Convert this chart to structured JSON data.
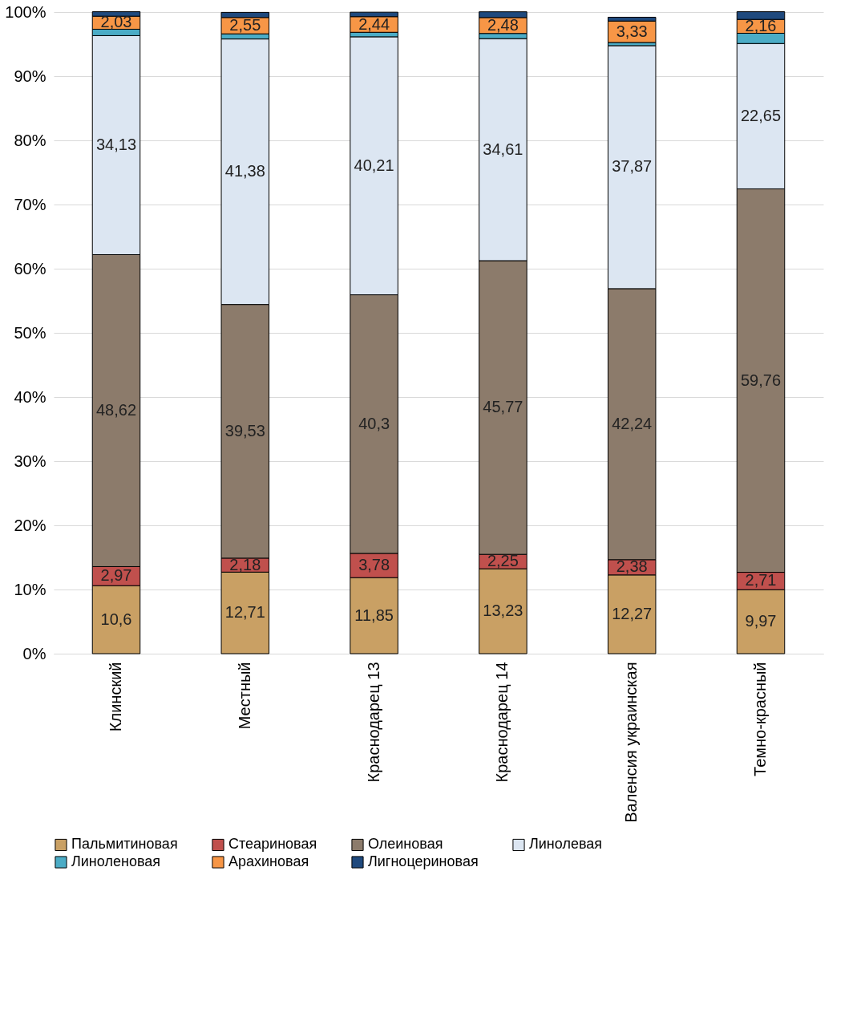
{
  "chart_data": {
    "type": "bar",
    "stacked": true,
    "categories": [
      "Клинский",
      "Местный",
      "Краснодарец 13",
      "Краснодарец 14",
      "Валенсия украинская",
      "Темно-красный"
    ],
    "series": [
      {
        "name": "Пальмитиновая",
        "color": "#c9a064",
        "values": [
          10.6,
          12.71,
          11.85,
          13.23,
          12.27,
          9.97
        ],
        "value_labels": [
          "10,6",
          "12,71",
          "11,85",
          "13,23",
          "12,27",
          "9,97"
        ]
      },
      {
        "name": "Стеариновая",
        "color": "#c0504d",
        "values": [
          2.97,
          2.18,
          3.78,
          2.25,
          2.38,
          2.71
        ],
        "value_labels": [
          "2,97",
          "2,18",
          "3,78",
          "2,25",
          "2,38",
          "2,71"
        ]
      },
      {
        "name": "Олеиновая",
        "color": "#8c7b6b",
        "values": [
          48.62,
          39.53,
          40.3,
          45.77,
          42.24,
          59.76
        ],
        "value_labels": [
          "48,62",
          "39,53",
          "40,3",
          "45,77",
          "42,24",
          "59,76"
        ]
      },
      {
        "name": "Линолевая",
        "color": "#dce6f2",
        "values": [
          34.13,
          41.38,
          40.21,
          34.61,
          37.87,
          22.65
        ],
        "value_labels": [
          "34,13",
          "41,38",
          "40,21",
          "34,61",
          "37,87",
          "22,65"
        ]
      },
      {
        "name": "Линоленовая",
        "color": "#4bacc6",
        "values": [
          1.0,
          0.8,
          0.7,
          0.8,
          0.5,
          1.6
        ]
      },
      {
        "name": "Арахиновая",
        "color": "#f79646",
        "values": [
          2.03,
          2.55,
          2.44,
          2.48,
          3.33,
          2.16
        ],
        "value_labels": [
          "2,03",
          "2,55",
          "2,44",
          "2,48",
          "3,33",
          "2,16"
        ]
      },
      {
        "name": "Лигноцериновая",
        "color": "#1f497d",
        "values": [
          0.7,
          0.8,
          0.7,
          0.9,
          0.6,
          1.2
        ]
      }
    ],
    "ylim": [
      0,
      100
    ],
    "yticks": [
      {
        "value": 0,
        "label": "0%"
      },
      {
        "value": 10,
        "label": "10%"
      },
      {
        "value": 20,
        "label": "20%"
      },
      {
        "value": 30,
        "label": "30%"
      },
      {
        "value": 40,
        "label": "40%"
      },
      {
        "value": 50,
        "label": "50%"
      },
      {
        "value": 60,
        "label": "60%"
      },
      {
        "value": 70,
        "label": "70%"
      },
      {
        "value": 80,
        "label": "80%"
      },
      {
        "value": 90,
        "label": "90%"
      },
      {
        "value": 100,
        "label": "100%"
      }
    ],
    "grid": "y",
    "legend": "bottom"
  }
}
